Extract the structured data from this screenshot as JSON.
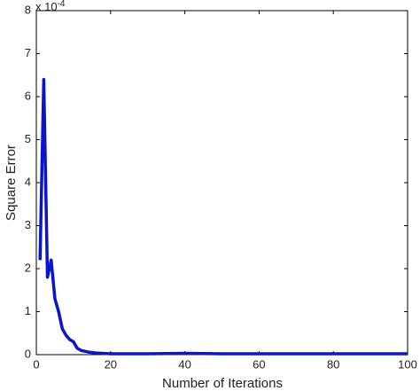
{
  "chart_data": {
    "type": "line",
    "x_label": "Number of Iterations",
    "y_label": "Square Error",
    "y_multiplier": {
      "base": "x 10",
      "exponent": "-4"
    },
    "x": [
      1,
      2,
      3,
      4,
      5,
      6,
      7,
      8,
      9,
      10,
      11,
      12,
      14,
      16,
      20,
      30,
      40,
      50,
      60,
      70,
      80,
      90,
      100
    ],
    "series": [
      {
        "name": "Square Error",
        "color": "#0a14c8",
        "values": [
          2.2,
          6.4,
          1.8,
          2.2,
          1.3,
          1.0,
          0.6,
          0.45,
          0.35,
          0.3,
          0.15,
          0.1,
          0.06,
          0.04,
          0.02,
          0.02,
          0.03,
          0.02,
          0.02,
          0.02,
          0.02,
          0.02,
          0.02
        ]
      }
    ],
    "xlim": [
      0,
      100
    ],
    "xticks": [
      0,
      20,
      40,
      60,
      80,
      100
    ],
    "ylim": [
      0,
      8
    ],
    "yticks": [
      0,
      1,
      2,
      3,
      4,
      5,
      6,
      7,
      8
    ],
    "grid": false
  }
}
